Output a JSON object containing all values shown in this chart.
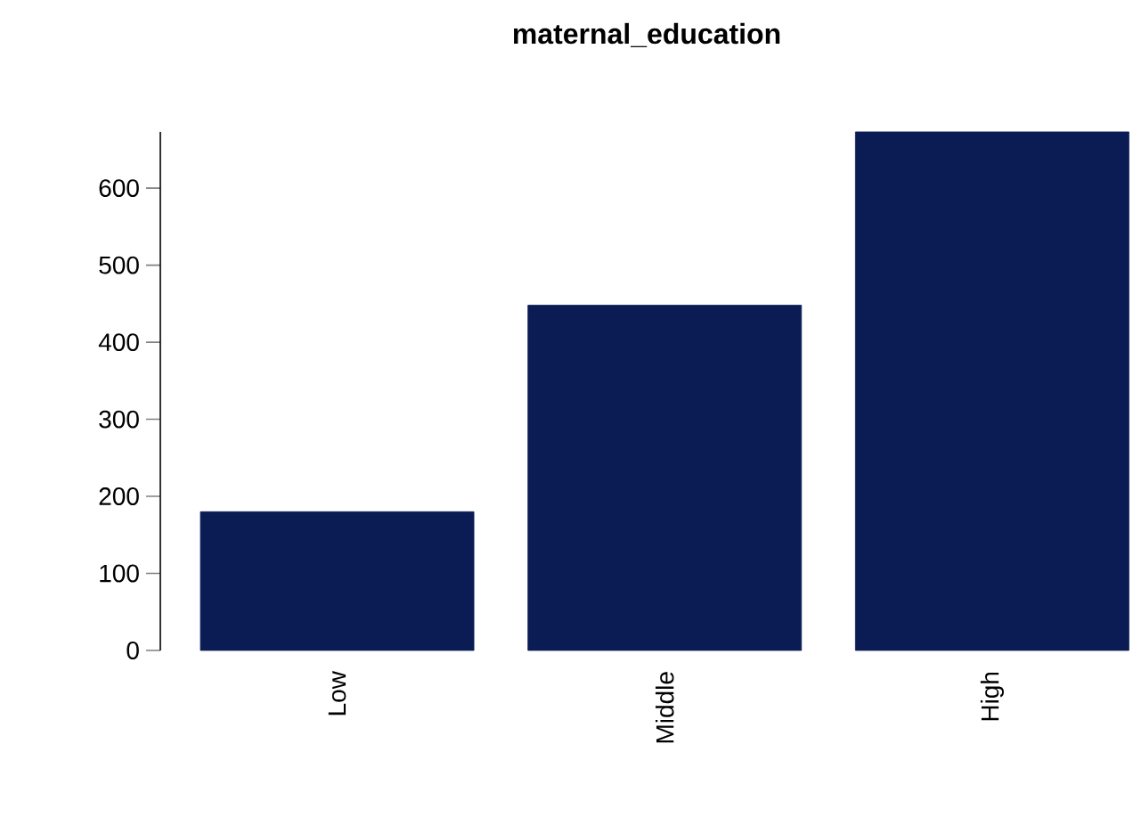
{
  "chart_data": {
    "type": "bar",
    "title": "maternal_education",
    "categories": [
      "Low",
      "Middle",
      "High"
    ],
    "values": [
      180,
      448,
      673
    ],
    "color": "#0b1c55",
    "ylim": [
      0,
      673
    ],
    "yticks": [
      0,
      100,
      200,
      300,
      400,
      500,
      600
    ],
    "grid": false
  }
}
